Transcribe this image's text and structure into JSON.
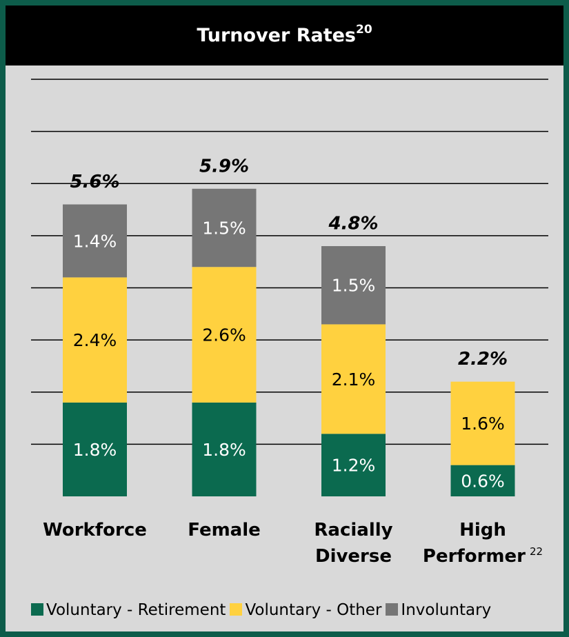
{
  "chart_data": {
    "type": "stacked_bar",
    "title": "Turnover Rates",
    "title_footnote": "20",
    "categories": [
      "Workforce",
      "Female",
      "Racially Diverse",
      "High Performer"
    ],
    "category_footnotes": [
      null,
      null,
      null,
      "22"
    ],
    "series": [
      {
        "name": "Voluntary - Retirement",
        "color": "#0b6a4f",
        "values": [
          1.8,
          1.8,
          1.2,
          0.6
        ],
        "value_labels": [
          "1.8%",
          "1.8%",
          "1.2%",
          "0.6%"
        ]
      },
      {
        "name": "Voluntary - Other",
        "color": "#ffd13f",
        "values": [
          2.4,
          2.6,
          2.1,
          1.6
        ],
        "value_labels": [
          "2.4%",
          "2.6%",
          "2.1%",
          "1.6%"
        ]
      },
      {
        "name": "Involuntary",
        "color": "#767676",
        "values": [
          1.4,
          1.5,
          1.5,
          null
        ],
        "value_labels": [
          "1.4%",
          "1.5%",
          "1.5%",
          null
        ]
      }
    ],
    "totals": [
      5.6,
      5.9,
      4.8,
      2.2
    ],
    "total_labels": [
      "5.6%",
      "5.9%",
      "4.8%",
      "2.2%"
    ],
    "ylim": [
      0,
      8
    ],
    "yticks": [
      1,
      2,
      3,
      4,
      5,
      6,
      7,
      8
    ],
    "grid": true
  }
}
